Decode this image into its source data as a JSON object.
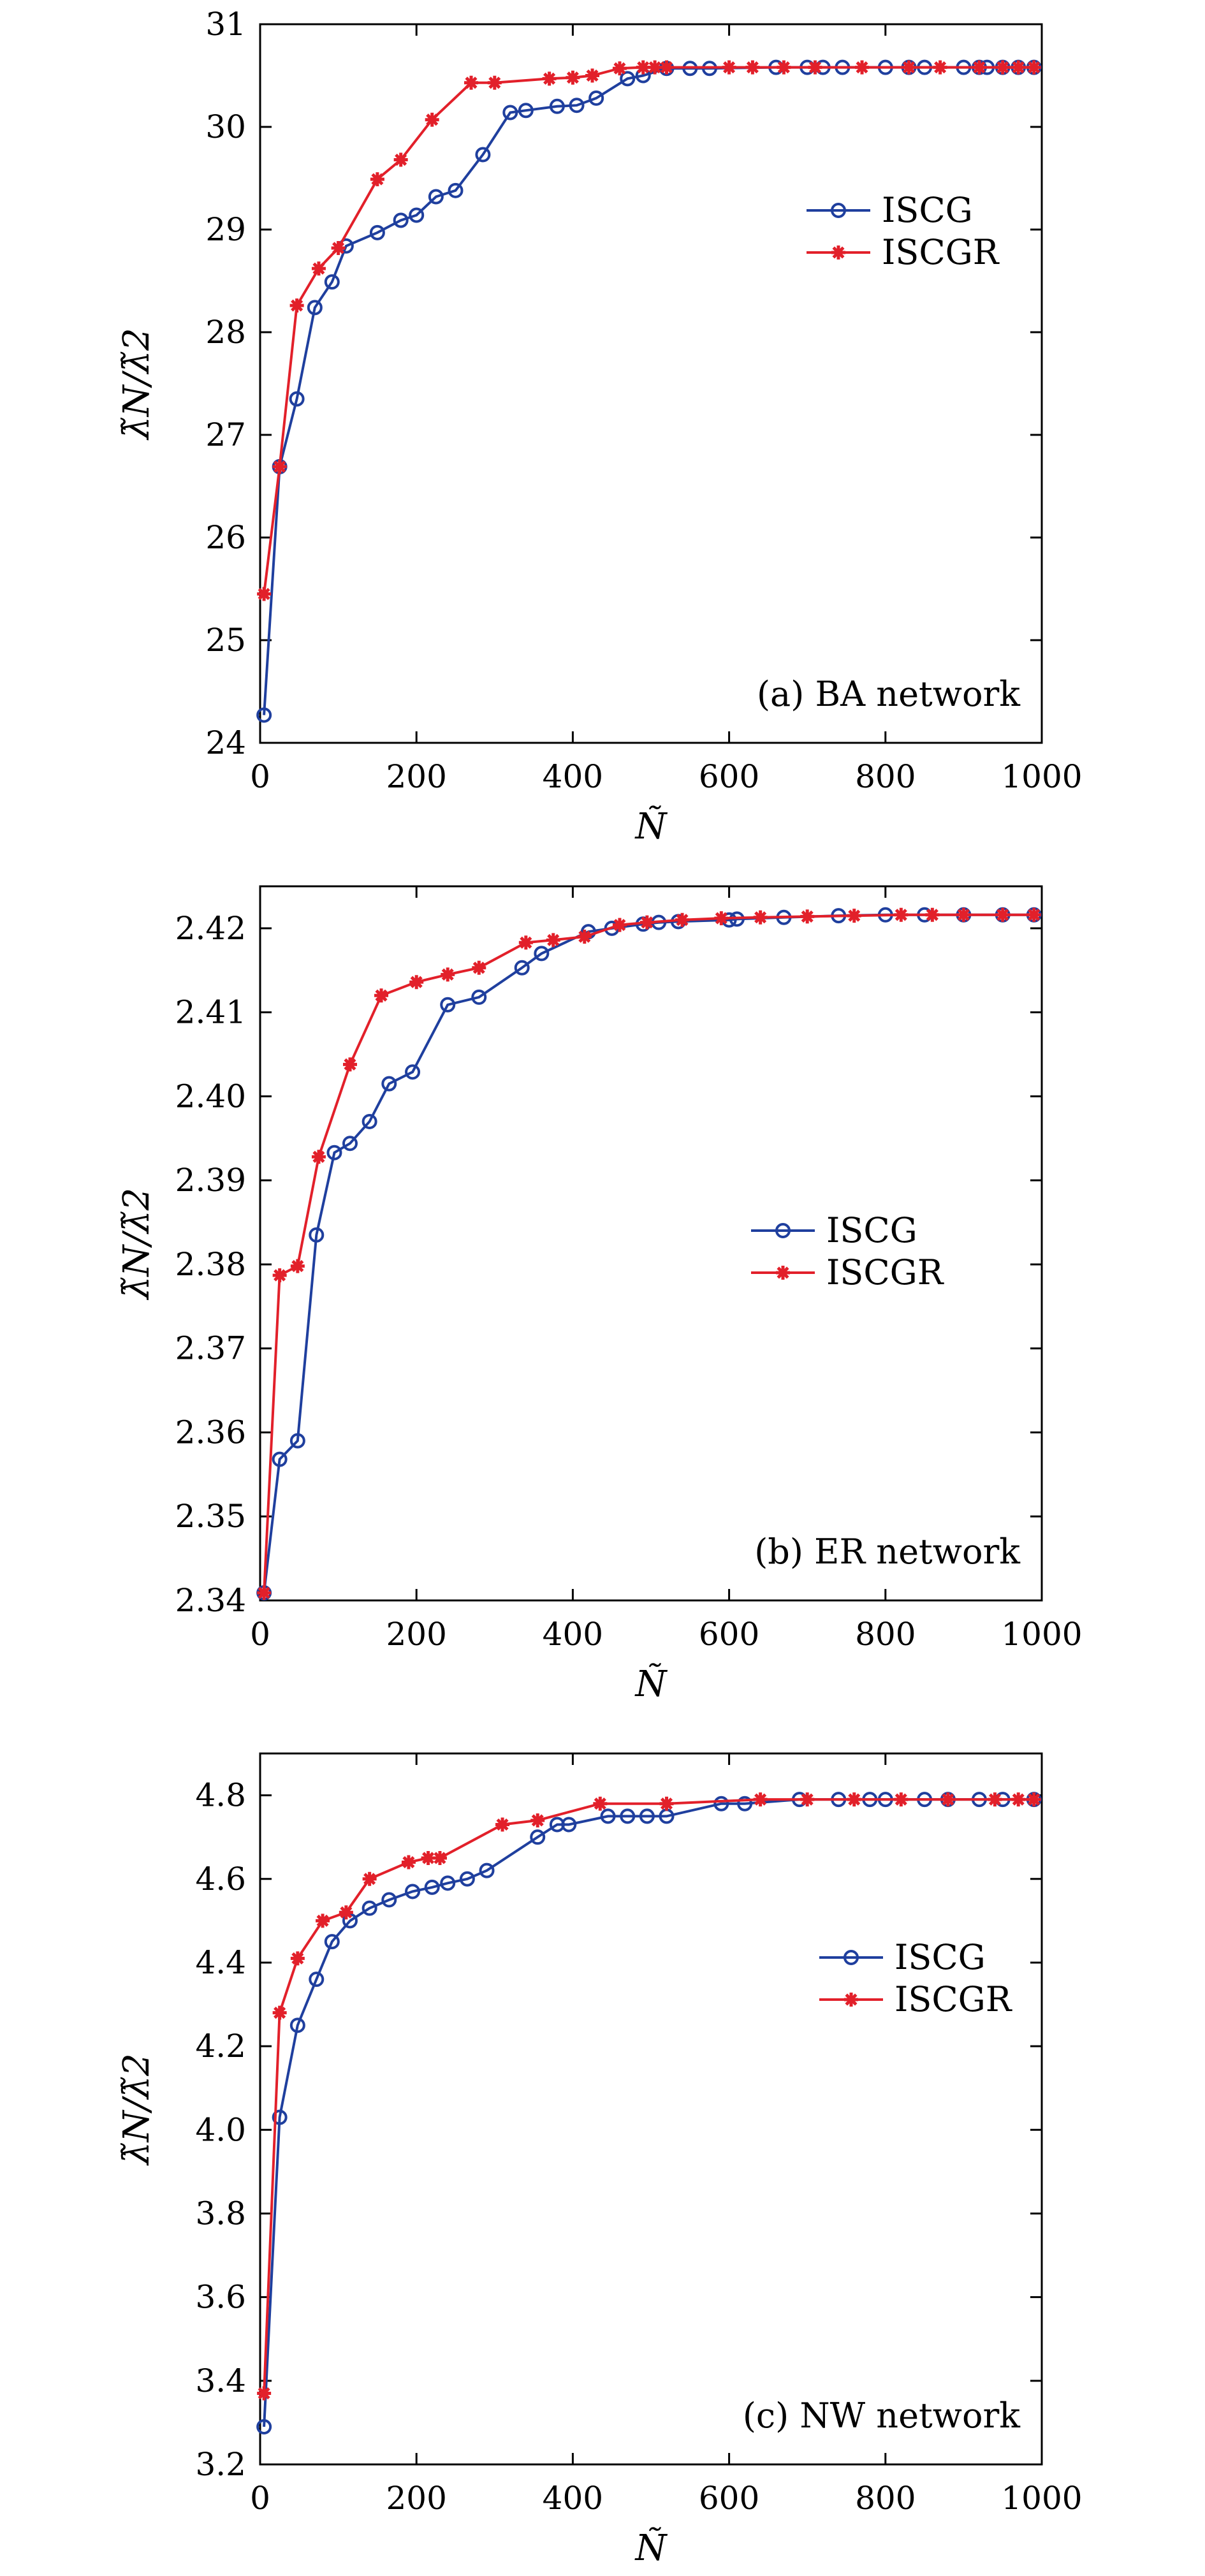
{
  "figure": {
    "colors": {
      "ISCG": "#1f3f9e",
      "ISCGR": "#e2202a",
      "axis": "#000000"
    }
  },
  "chart_data": [
    {
      "type": "line",
      "annotation": "(a) BA network",
      "xlabel": "Ñ",
      "ylabel": "λ̃N/λ̃2",
      "xlim": [
        0,
        1000
      ],
      "ylim": [
        24,
        31
      ],
      "xticks": [
        0,
        200,
        400,
        600,
        800,
        1000
      ],
      "yticks": [
        24,
        25,
        26,
        27,
        28,
        29,
        30,
        31
      ],
      "xtick_labels": [
        "0",
        "200",
        "400",
        "600",
        "800",
        "1000"
      ],
      "ytick_labels": [
        "24",
        "25",
        "26",
        "27",
        "28",
        "29",
        "30",
        "31"
      ],
      "legend_position": "upper-right",
      "series": [
        {
          "name": "ISCG",
          "marker": "circle",
          "color": "#1f3f9e",
          "x": [
            5,
            25,
            47,
            70,
            92,
            110,
            150,
            180,
            200,
            225,
            250,
            285,
            320,
            340,
            380,
            405,
            430,
            470,
            490,
            520,
            550,
            575,
            660,
            700,
            720,
            745,
            800,
            830,
            850,
            900,
            920,
            930,
            950,
            970,
            990
          ],
          "y": [
            24.27,
            26.69,
            27.35,
            28.24,
            28.49,
            28.84,
            28.97,
            29.09,
            29.14,
            29.32,
            29.38,
            29.73,
            30.14,
            30.16,
            30.2,
            30.21,
            30.28,
            30.47,
            30.5,
            30.57,
            30.57,
            30.57,
            30.58,
            30.58,
            30.58,
            30.58,
            30.58,
            30.58,
            30.58,
            30.58,
            30.58,
            30.58,
            30.58,
            30.58,
            30.58
          ]
        },
        {
          "name": "ISCGR",
          "marker": "star",
          "color": "#e2202a",
          "x": [
            5,
            25,
            47,
            75,
            100,
            150,
            180,
            220,
            270,
            300,
            370,
            400,
            425,
            460,
            490,
            505,
            520,
            600,
            630,
            670,
            710,
            770,
            830,
            870,
            920,
            950,
            970,
            990
          ],
          "y": [
            25.45,
            26.69,
            28.26,
            28.62,
            28.82,
            29.49,
            29.68,
            30.07,
            30.43,
            30.43,
            30.47,
            30.48,
            30.5,
            30.57,
            30.58,
            30.58,
            30.58,
            30.58,
            30.58,
            30.58,
            30.58,
            30.58,
            30.58,
            30.58,
            30.58,
            30.58,
            30.58,
            30.58
          ]
        }
      ]
    },
    {
      "type": "line",
      "annotation": "(b) ER network",
      "xlabel": "Ñ",
      "ylabel": "λ̃N/λ̃2",
      "xlim": [
        0,
        1000
      ],
      "ylim": [
        2.34,
        2.425
      ],
      "xticks": [
        0,
        200,
        400,
        600,
        800,
        1000
      ],
      "yticks": [
        2.34,
        2.35,
        2.36,
        2.37,
        2.38,
        2.39,
        2.4,
        2.41,
        2.42
      ],
      "xtick_labels": [
        "0",
        "200",
        "400",
        "600",
        "800",
        "1000"
      ],
      "ytick_labels": [
        "2.34",
        "2.35",
        "2.36",
        "2.37",
        "2.38",
        "2.39",
        "2.40",
        "2.41",
        "2.42"
      ],
      "legend_position": "center-right",
      "series": [
        {
          "name": "ISCG",
          "marker": "circle",
          "color": "#1f3f9e",
          "x": [
            5,
            25,
            48,
            72,
            95,
            115,
            140,
            165,
            195,
            240,
            280,
            335,
            360,
            420,
            450,
            490,
            510,
            535,
            600,
            610,
            670,
            740,
            800,
            850,
            900,
            950,
            990
          ],
          "y": [
            2.3409,
            2.3568,
            2.359,
            2.3835,
            2.3933,
            2.3944,
            2.397,
            2.4015,
            2.4029,
            2.4109,
            2.4118,
            2.4153,
            2.417,
            2.4196,
            2.42,
            2.4205,
            2.4207,
            2.4208,
            2.421,
            2.4211,
            2.4213,
            2.4215,
            2.4216,
            2.4216,
            2.4216,
            2.4216,
            2.4216
          ]
        },
        {
          "name": "ISCGR",
          "marker": "star",
          "color": "#e2202a",
          "x": [
            5,
            25,
            48,
            75,
            115,
            155,
            200,
            240,
            280,
            340,
            375,
            415,
            460,
            495,
            540,
            590,
            640,
            700,
            760,
            820,
            860,
            900,
            950,
            990
          ],
          "y": [
            2.3409,
            2.3787,
            2.3798,
            2.3928,
            2.4038,
            2.412,
            2.4136,
            2.4145,
            2.4153,
            2.4183,
            2.4186,
            2.419,
            2.4204,
            2.4207,
            2.421,
            2.4212,
            2.4213,
            2.4214,
            2.4215,
            2.4216,
            2.4216,
            2.4216,
            2.4216,
            2.4216
          ]
        }
      ]
    },
    {
      "type": "line",
      "annotation": "(c) NW network",
      "xlabel": "Ñ",
      "ylabel": "λ̃N/λ̃2",
      "xlim": [
        0,
        1000
      ],
      "ylim": [
        3.2,
        4.9
      ],
      "xticks": [
        0,
        200,
        400,
        600,
        800,
        1000
      ],
      "yticks": [
        3.2,
        3.4,
        3.6,
        3.8,
        4.0,
        4.2,
        4.4,
        4.6,
        4.8
      ],
      "xtick_labels": [
        "0",
        "200",
        "400",
        "600",
        "800",
        "1000"
      ],
      "ytick_labels": [
        "3.2",
        "3.4",
        "3.6",
        "3.8",
        "4.0",
        "4.2",
        "4.4",
        "4.6",
        "4.8"
      ],
      "legend_position": "center-right",
      "series": [
        {
          "name": "ISCG",
          "marker": "circle",
          "color": "#1f3f9e",
          "x": [
            5,
            25,
            48,
            72,
            92,
            115,
            140,
            165,
            195,
            220,
            240,
            265,
            290,
            355,
            380,
            395,
            445,
            470,
            495,
            520,
            590,
            620,
            690,
            740,
            780,
            800,
            850,
            880,
            920,
            950,
            990
          ],
          "y": [
            3.29,
            4.03,
            4.25,
            4.36,
            4.45,
            4.5,
            4.53,
            4.55,
            4.57,
            4.58,
            4.59,
            4.6,
            4.62,
            4.7,
            4.73,
            4.73,
            4.75,
            4.75,
            4.75,
            4.75,
            4.78,
            4.78,
            4.79,
            4.79,
            4.79,
            4.79,
            4.79,
            4.79,
            4.79,
            4.79,
            4.79
          ]
        },
        {
          "name": "ISCGR",
          "marker": "star",
          "color": "#e2202a",
          "x": [
            5,
            25,
            48,
            80,
            110,
            140,
            190,
            215,
            230,
            310,
            355,
            435,
            520,
            640,
            700,
            760,
            820,
            880,
            940,
            970,
            990
          ],
          "y": [
            3.37,
            4.28,
            4.41,
            4.5,
            4.52,
            4.6,
            4.64,
            4.65,
            4.65,
            4.73,
            4.74,
            4.78,
            4.78,
            4.79,
            4.79,
            4.79,
            4.79,
            4.79,
            4.79,
            4.79,
            4.79
          ]
        }
      ]
    }
  ]
}
